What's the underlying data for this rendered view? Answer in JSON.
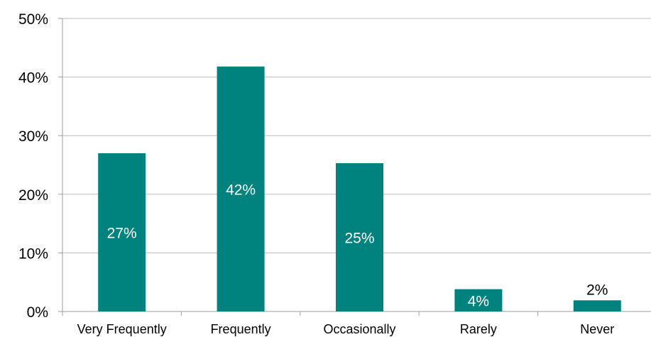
{
  "chart_data": {
    "type": "bar",
    "title": "",
    "xlabel": "",
    "ylabel": "",
    "categories": [
      "Very Frequently",
      "Frequently",
      "Occasionally",
      "Rarely",
      "Never"
    ],
    "values": [
      0.27,
      0.418,
      0.253,
      0.038,
      0.019
    ],
    "data_labels": [
      "27%",
      "42%",
      "25%",
      "4%",
      "2%"
    ],
    "ylim": [
      0,
      0.5
    ],
    "yticks": [
      0,
      0.1,
      0.2,
      0.3,
      0.4,
      0.5
    ],
    "ytick_labels": [
      "0%",
      "10%",
      "20%",
      "30%",
      "40%",
      "50%"
    ],
    "grid": "horizontal",
    "legend": "none",
    "colors": {
      "bar": "#00827F",
      "grid": "#BDBDBD",
      "axis": "#9E9E9E",
      "text": "#000000",
      "label_inside": "#FFFFFF",
      "label_outside": "#000000"
    }
  }
}
